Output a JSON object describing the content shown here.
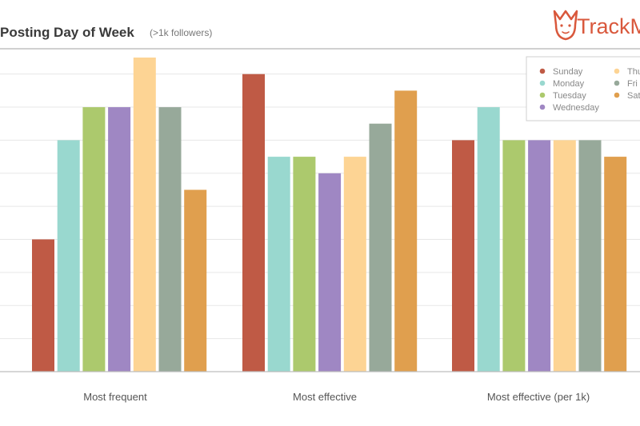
{
  "title": "Posting Day of Week",
  "subtitle": "(>1k followers)",
  "brand": {
    "name": "TrackM",
    "color": "#d9583c"
  },
  "chart_data": {
    "type": "bar",
    "title": "Posting Day of Week",
    "subtitle": "(>1k followers)",
    "categories": [
      "Most frequent",
      "Most effective",
      "Most effective (per 1k)"
    ],
    "xlabel": "",
    "ylabel": "",
    "ylim": [
      0,
      19
    ],
    "grid": true,
    "legend_position": "top-right",
    "series": [
      {
        "name": "Sunday",
        "color": "#bf5a45",
        "values": [
          8,
          18,
          14
        ]
      },
      {
        "name": "Monday",
        "color": "#99d8cf",
        "values": [
          14,
          13,
          16
        ]
      },
      {
        "name": "Tuesday",
        "color": "#acc96d",
        "values": [
          16,
          13,
          14
        ]
      },
      {
        "name": "Wednesday",
        "color": "#9f87c3",
        "values": [
          16,
          12,
          14
        ]
      },
      {
        "name": "Thu",
        "color": "#fdd494",
        "values": [
          19,
          13,
          14
        ]
      },
      {
        "name": "Fri",
        "color": "#97a99a",
        "values": [
          16,
          15,
          14
        ]
      },
      {
        "name": "Sat",
        "color": "#e09f4e",
        "values": [
          11,
          17,
          13
        ]
      }
    ]
  }
}
